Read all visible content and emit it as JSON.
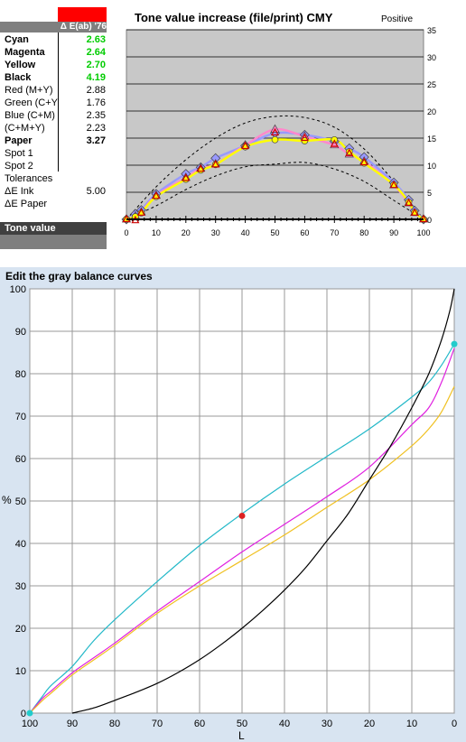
{
  "header": {
    "delta_label": "Δ E(ab) '76"
  },
  "table": {
    "rows": [
      {
        "label": "Cyan",
        "value": "2.63",
        "bold": true,
        "green": true
      },
      {
        "label": "Magenta",
        "value": "2.64",
        "bold": true,
        "green": true
      },
      {
        "label": "Yellow",
        "value": "2.70",
        "bold": true,
        "green": true
      },
      {
        "label": "Black",
        "value": "4.19",
        "bold": true,
        "green": true
      },
      {
        "label": "Red (M+Y)",
        "value": "2.88"
      },
      {
        "label": "Green (C+Y",
        "value": "1.76"
      },
      {
        "label": "Blue (C+M)",
        "value": "2.35"
      },
      {
        "label": "(C+M+Y)",
        "value": "2.23"
      },
      {
        "label": "Paper",
        "value": "3.27",
        "bold": true
      },
      {
        "label": "Spot 1",
        "value": ""
      },
      {
        "label": "Spot 2",
        "value": ""
      },
      {
        "label": "Tolerances",
        "value": ""
      },
      {
        "label": "ΔE Ink",
        "value": "5.00"
      },
      {
        "label": "ΔE Paper",
        "value": ""
      }
    ],
    "tone_value_label": "Tone value"
  },
  "colors": {
    "cyan": "#22b8c8",
    "magenta": "#e020e0",
    "yellow": "#f0c020",
    "black": "#000000",
    "pink": "#ff88cc",
    "blue": "#9999ff",
    "plot_bg": "#c8c8c8",
    "bottom_bg": "#d8e4f1"
  },
  "chart_data": [
    {
      "type": "line",
      "title": "Tone value increase (file/print) CMY",
      "mode_label": "Positive",
      "xlim": [
        0,
        100
      ],
      "ylim": [
        0,
        35
      ],
      "x_ticks": [
        0,
        10,
        20,
        30,
        40,
        50,
        60,
        70,
        80,
        90,
        100
      ],
      "y_ticks": [
        0,
        5,
        10,
        15,
        20,
        25,
        30,
        35
      ],
      "grid": true,
      "tolerance_upper": {
        "x": [
          0,
          10,
          20,
          30,
          40,
          50,
          60,
          70,
          80,
          90,
          100
        ],
        "y": [
          0,
          6,
          11,
          15,
          17.8,
          19,
          18.8,
          17,
          13,
          7,
          0
        ]
      },
      "tolerance_lower": {
        "x": [
          0,
          10,
          20,
          30,
          40,
          50,
          60,
          70,
          80,
          90,
          100
        ],
        "y": [
          0,
          2.5,
          5.5,
          8,
          9.7,
          10.2,
          10.5,
          9.3,
          7,
          3.5,
          0
        ]
      },
      "series": [
        {
          "color": "#9999ff",
          "marker": "diamond",
          "x": [
            0,
            3,
            5,
            10,
            20,
            25,
            30,
            40,
            50,
            60,
            70,
            75,
            80,
            90,
            95,
            97,
            100
          ],
          "y": [
            0,
            1,
            1.7,
            4.7,
            8.4,
            9.6,
            11.3,
            13.6,
            15.9,
            15.6,
            14.4,
            13.1,
            11.5,
            6.8,
            3.6,
            1.6,
            0
          ]
        },
        {
          "color": "#ff88cc",
          "marker": "triangle",
          "x": [
            0,
            3,
            5,
            10,
            20,
            25,
            30,
            40,
            50,
            60,
            70,
            75,
            80,
            90,
            95,
            97,
            100
          ],
          "y": [
            0,
            0.6,
            1.3,
            4.4,
            7.7,
            9.4,
            10.2,
            13.7,
            16.6,
            15.3,
            13.7,
            12.0,
            10.7,
            6.3,
            3.0,
            1.2,
            0
          ]
        },
        {
          "color": "#ffff00",
          "marker": "circle",
          "x": [
            0,
            3,
            5,
            10,
            20,
            25,
            30,
            40,
            50,
            60,
            70,
            75,
            80,
            90,
            95,
            97,
            100
          ],
          "y": [
            0,
            0.5,
            1.2,
            4.2,
            7.4,
            9.1,
            10.1,
            13.4,
            14.7,
            14.5,
            14.7,
            12.5,
            10.4,
            6.4,
            3.2,
            1.3,
            0
          ]
        }
      ],
      "red_markers": {
        "x": [
          0,
          3,
          5,
          10,
          20,
          25,
          30,
          40,
          50,
          60,
          70,
          75,
          80,
          90,
          95,
          97,
          100
        ],
        "y": [
          0,
          -0.2,
          1.2,
          4.3,
          7.6,
          9.3,
          10.1,
          13.5,
          16.0,
          15.0,
          13.9,
          12.2,
          10.5,
          6.3,
          3.0,
          1.2,
          0
        ]
      }
    },
    {
      "type": "line",
      "title": "Edit the gray balance curves",
      "xlabel": "L",
      "ylabel": "%",
      "xlim": [
        100,
        0
      ],
      "ylim": [
        0,
        100
      ],
      "x_ticks": [
        100,
        90,
        80,
        70,
        60,
        50,
        40,
        30,
        20,
        10,
        0
      ],
      "y_ticks": [
        0,
        10,
        20,
        30,
        40,
        50,
        60,
        70,
        80,
        90,
        100
      ],
      "grid": true,
      "series": [
        {
          "color": "#22b8c8",
          "x": [
            100,
            97,
            95,
            90,
            85,
            80,
            70,
            60,
            50,
            40,
            30,
            20,
            10,
            6,
            3,
            0
          ],
          "y": [
            0,
            4,
            6.5,
            11,
            17,
            22,
            31,
            39.5,
            47,
            54,
            60.5,
            67,
            74.5,
            78,
            82,
            87
          ]
        },
        {
          "color": "#e020e0",
          "x": [
            100,
            97,
            95,
            90,
            85,
            80,
            70,
            60,
            50,
            40,
            30,
            20,
            10,
            6,
            3,
            0
          ],
          "y": [
            0,
            3.5,
            5.2,
            9.5,
            13,
            16.5,
            24,
            31,
            38,
            44.5,
            51,
            58,
            68,
            72,
            78,
            86
          ]
        },
        {
          "color": "#f0c020",
          "x": [
            100,
            97,
            95,
            90,
            85,
            80,
            70,
            60,
            50,
            40,
            30,
            20,
            10,
            6,
            3,
            0
          ],
          "y": [
            0,
            3,
            4.7,
            9,
            12.5,
            16,
            23.5,
            30,
            36,
            42,
            48.5,
            55,
            63,
            67,
            71,
            77
          ]
        },
        {
          "color": "#000000",
          "x": [
            90,
            85,
            80,
            75,
            70,
            65,
            60,
            55,
            50,
            45,
            40,
            35,
            30,
            25,
            20,
            15,
            10,
            6,
            3,
            1,
            0
          ],
          "y": [
            0,
            1.2,
            3,
            4.9,
            7,
            9.6,
            12.6,
            16.1,
            20,
            24.3,
            29,
            34.3,
            40.6,
            47,
            55,
            63,
            72,
            80,
            88,
            95,
            100
          ]
        }
      ],
      "control_points": [
        {
          "x": 100,
          "y": 0,
          "color": "#22cccc"
        },
        {
          "x": 0,
          "y": 87,
          "color": "#22cccc"
        },
        {
          "x": 50,
          "y": 46.5,
          "color": "#dd2222"
        }
      ]
    }
  ]
}
